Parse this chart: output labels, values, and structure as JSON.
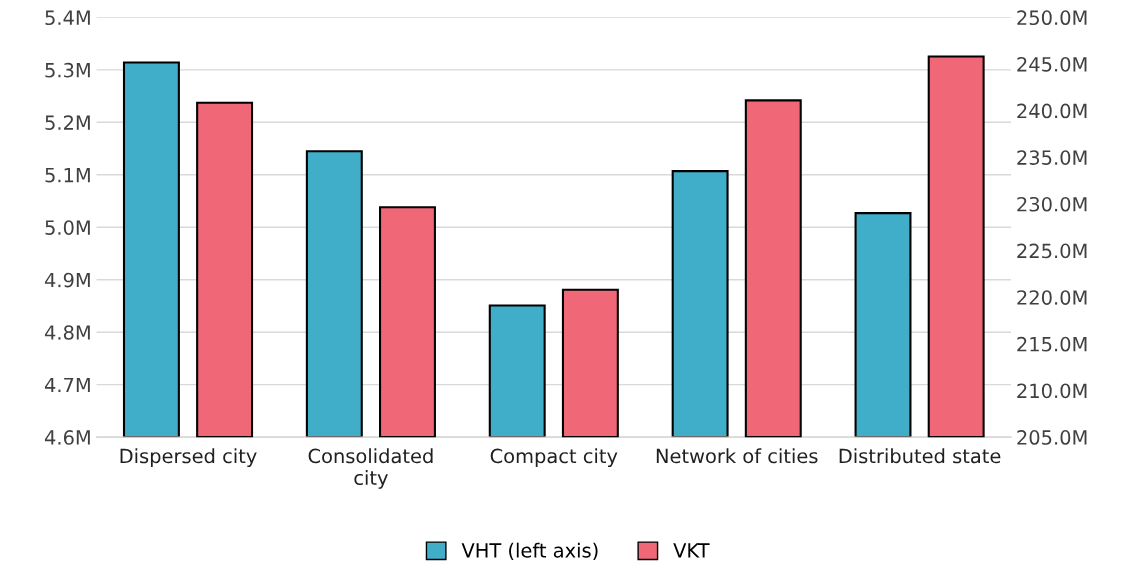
{
  "chart_data": {
    "type": "bar",
    "categories": [
      "Dispersed city",
      "Consolidated\ncity",
      "Compact city",
      "Network of cities",
      "Distributed state"
    ],
    "series": [
      {
        "name": "VHT (left axis)",
        "color": "#40aec8",
        "values": [
          5.314,
          5.145,
          4.851,
          5.107,
          5.027
        ]
      },
      {
        "name": "VKT",
        "color": "#f06878",
        "axis": "y2",
        "values": [
          240.85,
          229.65,
          220.8,
          241.1,
          245.8
        ]
      }
    ],
    "ylim": [
      4.6,
      5.4
    ],
    "yticks": [
      {
        "value": 4.6,
        "label": "4.6M"
      },
      {
        "value": 4.7,
        "label": "4.7M"
      },
      {
        "value": 4.8,
        "label": "4.8M"
      },
      {
        "value": 4.9,
        "label": "4.9M"
      },
      {
        "value": 5.0,
        "label": "5.0M"
      },
      {
        "value": 5.1,
        "label": "5.1M"
      },
      {
        "value": 5.2,
        "label": "5.2M"
      },
      {
        "value": 5.3,
        "label": "5.3M"
      },
      {
        "value": 5.4,
        "label": "5.4M"
      }
    ],
    "y2lim": [
      205,
      250
    ],
    "y2ticks": [
      {
        "value": 205,
        "label": "205.0M"
      },
      {
        "value": 210,
        "label": "210.0M"
      },
      {
        "value": 215,
        "label": "215.0M"
      },
      {
        "value": 220,
        "label": "220.0M"
      },
      {
        "value": 225,
        "label": "225.0M"
      },
      {
        "value": 230,
        "label": "230.0M"
      },
      {
        "value": 235,
        "label": "235.0M"
      },
      {
        "value": 240,
        "label": "240.0M"
      },
      {
        "value": 245,
        "label": "245.0M"
      },
      {
        "value": 250,
        "label": "250.0M"
      }
    ],
    "grid": "y",
    "legend": "bottom"
  }
}
